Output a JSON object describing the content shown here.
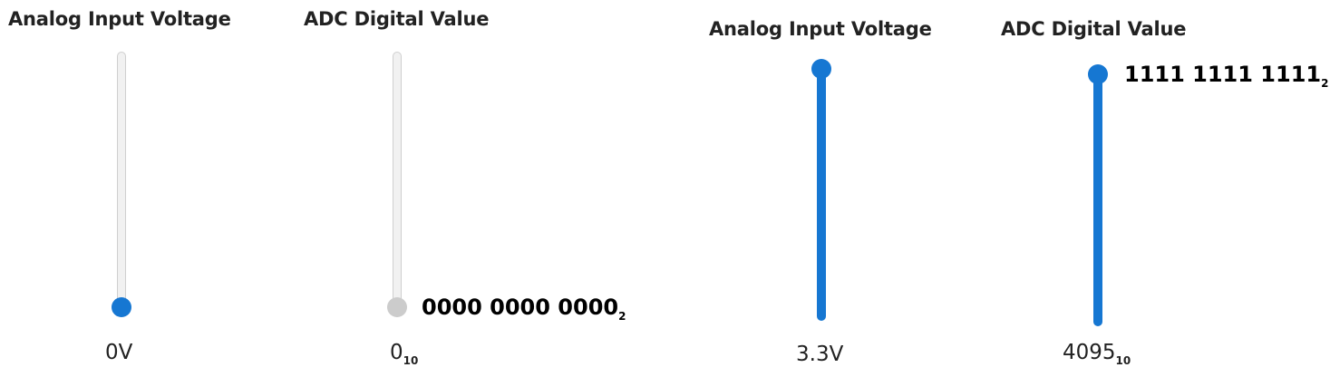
{
  "left_state": {
    "voltage": {
      "title": "Analog Input Voltage",
      "value": "0V",
      "level": 0,
      "color": "#1677d2"
    },
    "adc": {
      "title": "ADC Digital Value",
      "value": "0",
      "base": "10",
      "binary": "0000 0000 0000",
      "binary_base": "2",
      "level": 0,
      "disabled": true
    }
  },
  "right_state": {
    "voltage": {
      "title": "Analog Input Voltage",
      "value": "3.3V",
      "level": 1,
      "color": "#1677d2"
    },
    "adc": {
      "title": "ADC Digital Value",
      "value": "4095",
      "base": "10",
      "binary": "1111 1111 1111",
      "binary_base": "2",
      "level": 1
    }
  }
}
